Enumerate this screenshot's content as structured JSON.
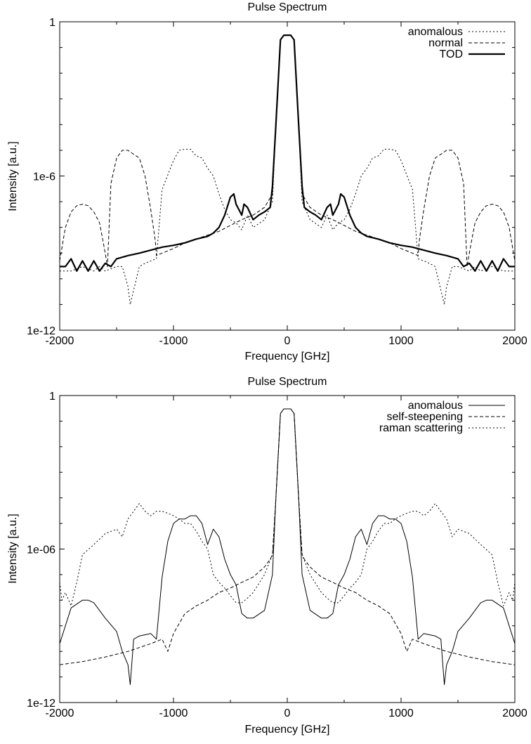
{
  "chart_data": [
    {
      "type": "line",
      "title": "Pulse Spectrum",
      "xlabel": "Frequency [GHz]",
      "ylabel": "Intensity [a.u.]",
      "xlim": [
        -2000,
        2000
      ],
      "ylim": [
        1e-12,
        1
      ],
      "yscale": "log",
      "xticks": [
        -2000,
        -1000,
        0,
        1000,
        2000
      ],
      "xtick_labels": [
        "-2000",
        "-1000",
        "0",
        "1000",
        "2000"
      ],
      "yticks": [
        1e-12,
        1e-06,
        1
      ],
      "ytick_labels": [
        "1e-12",
        "1e-6",
        "1"
      ],
      "grid": false,
      "legend_position": "top-right",
      "series": [
        {
          "name": "anomalous",
          "style": "dotted",
          "x": [
            -2000,
            -1900,
            -1800,
            -1700,
            -1650,
            -1600,
            -1500,
            -1450,
            -1400,
            -1380,
            -1300,
            -1250,
            -1200,
            -1150,
            -1100,
            -1000,
            -950,
            -900,
            -850,
            -800,
            -750,
            -700,
            -650,
            -600,
            -550,
            -500,
            -450,
            -400,
            -350,
            -300,
            -200,
            -130,
            -100,
            -60,
            -30,
            0,
            30,
            60,
            100,
            130,
            200,
            300,
            350,
            400,
            450,
            500,
            550,
            600,
            650,
            700,
            750,
            800,
            850,
            900,
            950,
            1000,
            1100,
            1150,
            1200,
            1250,
            1300,
            1380,
            1400,
            1450,
            1500,
            1600,
            1650,
            1700,
            1800,
            1900,
            2000
          ],
          "y": [
            2e-10,
            2e-10,
            3e-10,
            2e-10,
            3e-10,
            2e-10,
            3e-10,
            3e-10,
            5e-11,
            1e-11,
            3e-10,
            4e-10,
            5e-10,
            6e-10,
            3e-07,
            4e-06,
            1e-05,
            1.1e-05,
            1.1e-05,
            6e-06,
            5e-06,
            2e-06,
            1e-06,
            2e-07,
            5e-08,
            2e-08,
            1.5e-08,
            8e-09,
            3e-08,
            1e-08,
            2e-08,
            1e-07,
            0.0001,
            0.2,
            0.3,
            0.3,
            0.3,
            0.2,
            0.0001,
            1e-07,
            2e-08,
            1e-08,
            3e-08,
            8e-09,
            1.5e-08,
            2e-08,
            5e-08,
            2e-07,
            1e-06,
            2e-06,
            5e-06,
            6e-06,
            1.1e-05,
            1.1e-05,
            1e-05,
            4e-06,
            3e-07,
            6e-10,
            5e-10,
            4e-10,
            3e-10,
            1e-11,
            5e-11,
            3e-10,
            3e-10,
            2e-10,
            3e-10,
            2e-10,
            3e-10,
            2e-10,
            2e-10
          ]
        },
        {
          "name": "normal",
          "style": "dashed",
          "x": [
            -2000,
            -1950,
            -1900,
            -1850,
            -1800,
            -1750,
            -1700,
            -1650,
            -1620,
            -1600,
            -1580,
            -1550,
            -1500,
            -1450,
            -1400,
            -1350,
            -1300,
            -1250,
            -1200,
            -1160,
            -1150,
            -1100,
            -1000,
            -900,
            -800,
            -700,
            -600,
            -500,
            -400,
            -300,
            -200,
            -130,
            -100,
            -60,
            -30,
            0,
            30,
            60,
            100,
            130,
            200,
            300,
            400,
            500,
            600,
            700,
            800,
            900,
            1000,
            1100,
            1150,
            1160,
            1200,
            1250,
            1300,
            1350,
            1400,
            1450,
            1500,
            1550,
            1580,
            1600,
            1620,
            1650,
            1700,
            1750,
            1800,
            1850,
            1900,
            1950,
            2000
          ],
          "y": [
            5e-10,
            1e-08,
            4e-08,
            7e-08,
            8e-08,
            7e-08,
            4e-08,
            1.5e-08,
            3e-09,
            1e-09,
            3e-10,
            5e-07,
            5e-06,
            1e-05,
            1e-05,
            7e-06,
            5e-06,
            1e-06,
            5e-08,
            3e-09,
            8e-10,
            1e-09,
            1.5e-09,
            2.5e-09,
            3.5e-09,
            5e-09,
            7e-09,
            1.2e-08,
            2e-08,
            3e-08,
            6e-08,
            2e-07,
            0.0001,
            0.2,
            0.3,
            0.3,
            0.3,
            0.2,
            0.0001,
            2e-07,
            6e-08,
            3e-08,
            2e-08,
            1.2e-08,
            7e-09,
            5e-09,
            3.5e-09,
            2.5e-09,
            1.5e-09,
            1e-09,
            8e-10,
            3e-09,
            5e-08,
            1e-06,
            5e-06,
            7e-06,
            1e-05,
            1e-05,
            5e-06,
            5e-07,
            3e-10,
            1e-09,
            3e-09,
            1.5e-08,
            4e-08,
            7e-08,
            8e-08,
            7e-08,
            4e-08,
            1e-08,
            5e-10
          ]
        },
        {
          "name": "TOD",
          "style": "solid-thick",
          "x": [
            -2000,
            -1950,
            -1900,
            -1850,
            -1800,
            -1750,
            -1700,
            -1650,
            -1600,
            -1550,
            -1500,
            -1400,
            -1300,
            -1200,
            -1100,
            -1000,
            -900,
            -800,
            -700,
            -650,
            -600,
            -550,
            -500,
            -470,
            -450,
            -400,
            -380,
            -350,
            -300,
            -250,
            -200,
            -150,
            -130,
            -100,
            -60,
            -30,
            0,
            30,
            60,
            100,
            130,
            150,
            200,
            250,
            300,
            350,
            380,
            400,
            450,
            470,
            500,
            550,
            600,
            650,
            700,
            800,
            900,
            1000,
            1100,
            1200,
            1300,
            1400,
            1500,
            1550,
            1600,
            1650,
            1700,
            1750,
            1800,
            1850,
            1900,
            1950,
            2000
          ],
          "y": [
            3e-10,
            3e-10,
            6e-10,
            2e-10,
            5e-10,
            2e-10,
            5e-10,
            2e-10,
            4e-10,
            3e-10,
            6e-10,
            8e-10,
            1e-09,
            1.3e-09,
            1.7e-09,
            2e-09,
            2.5e-09,
            3.5e-09,
            4.5e-09,
            6e-09,
            1e-08,
            3e-08,
            1.5e-07,
            2e-07,
            8e-08,
            3e-08,
            8e-08,
            6e-08,
            2e-08,
            3e-08,
            4e-08,
            6e-08,
            4e-07,
            0.0001,
            0.2,
            0.3,
            0.3,
            0.3,
            0.2,
            0.0001,
            4e-07,
            6e-08,
            4e-08,
            3e-08,
            2e-08,
            6e-08,
            8e-08,
            3e-08,
            8e-08,
            2e-07,
            1.5e-07,
            3e-08,
            1e-08,
            6e-09,
            4.5e-09,
            3.5e-09,
            2.5e-09,
            2e-09,
            1.7e-09,
            1.3e-09,
            1e-09,
            8e-10,
            6e-10,
            3e-10,
            4e-10,
            2e-10,
            5e-10,
            2e-10,
            5e-10,
            2e-10,
            6e-10,
            3e-10,
            3e-10
          ]
        }
      ]
    },
    {
      "type": "line",
      "title": "Pulse Spectrum",
      "xlabel": "Frequency [GHz]",
      "ylabel": "Intensity [a.u.]",
      "xlim": [
        -2000,
        2000
      ],
      "ylim": [
        1e-12,
        1
      ],
      "yscale": "log",
      "xticks": [
        -2000,
        -1000,
        0,
        1000,
        2000
      ],
      "xtick_labels": [
        "-2000",
        "-1000",
        "0",
        "1000",
        "2000"
      ],
      "yticks": [
        1e-12,
        1e-06,
        1
      ],
      "ytick_labels": [
        "1e-12",
        "1e-06",
        "1"
      ],
      "grid": false,
      "legend_position": "top-right",
      "series": [
        {
          "name": "anomalous",
          "style": "solid",
          "x": [
            -2000,
            -1900,
            -1800,
            -1750,
            -1700,
            -1600,
            -1500,
            -1450,
            -1400,
            -1380,
            -1350,
            -1300,
            -1200,
            -1150,
            -1100,
            -1050,
            -1000,
            -950,
            -900,
            -850,
            -800,
            -750,
            -700,
            -650,
            -600,
            -550,
            -500,
            -450,
            -400,
            -350,
            -300,
            -200,
            -130,
            -100,
            -60,
            -30,
            0,
            30,
            60,
            100,
            130,
            200,
            300,
            350,
            400,
            450,
            500,
            550,
            600,
            650,
            700,
            750,
            800,
            850,
            900,
            950,
            1000,
            1050,
            1100,
            1150,
            1200,
            1300,
            1350,
            1380,
            1400,
            1450,
            1500,
            1600,
            1700,
            1750,
            1800,
            1900,
            2000
          ],
          "y": [
            2e-10,
            5e-09,
            1e-08,
            1e-08,
            8e-09,
            2e-09,
            6e-10,
            1e-10,
            3e-11,
            5e-12,
            3e-10,
            4e-10,
            5e-10,
            3e-10,
            8e-08,
            2e-06,
            1e-05,
            1.5e-05,
            1.5e-05,
            2e-05,
            2e-05,
            1e-05,
            1.5e-06,
            6e-06,
            3e-06,
            4e-07,
            1e-07,
            4e-08,
            3e-09,
            2e-09,
            2e-09,
            4e-09,
            1e-07,
            0.0001,
            0.2,
            0.3,
            0.3,
            0.3,
            0.2,
            0.0001,
            1e-07,
            4e-09,
            2e-09,
            2e-09,
            3e-09,
            4e-08,
            1e-07,
            4e-07,
            3e-06,
            6e-06,
            1.5e-06,
            1e-05,
            2e-05,
            2e-05,
            1.5e-05,
            1.5e-05,
            1e-05,
            2e-06,
            8e-08,
            3e-10,
            5e-10,
            4e-10,
            3e-10,
            5e-12,
            3e-11,
            1e-10,
            6e-10,
            2e-09,
            8e-09,
            1e-08,
            1e-08,
            5e-09,
            2e-10
          ]
        },
        {
          "name": "self-steepening",
          "style": "dashed",
          "x": [
            -2000,
            -1800,
            -1600,
            -1400,
            -1200,
            -1100,
            -1050,
            -1000,
            -900,
            -800,
            -700,
            -600,
            -500,
            -400,
            -300,
            -200,
            -150,
            -130,
            -100,
            -60,
            -30,
            0,
            30,
            60,
            100,
            130,
            150,
            200,
            300,
            400,
            500,
            600,
            700,
            800,
            900,
            1000,
            1050,
            1100,
            1200,
            1400,
            1600,
            1800,
            2000
          ],
          "y": [
            3e-11,
            4e-11,
            6e-11,
            1e-10,
            2e-10,
            3e-10,
            1e-10,
            5e-10,
            3e-09,
            6e-09,
            1e-08,
            2e-08,
            3e-08,
            5e-08,
            8e-08,
            2e-07,
            4e-07,
            6e-07,
            0.0001,
            0.2,
            0.3,
            0.3,
            0.3,
            0.2,
            0.0001,
            6e-07,
            4e-07,
            2e-07,
            8e-08,
            5e-08,
            3e-08,
            2e-08,
            1e-08,
            6e-09,
            3e-09,
            5e-10,
            1e-10,
            3e-10,
            2e-10,
            1e-10,
            6e-11,
            4e-11,
            3e-11
          ]
        },
        {
          "name": "raman scattering",
          "style": "dotted",
          "x": [
            -2000,
            -1980,
            -1950,
            -1900,
            -1850,
            -1800,
            -1700,
            -1600,
            -1500,
            -1450,
            -1400,
            -1350,
            -1300,
            -1250,
            -1200,
            -1150,
            -1100,
            -1050,
            -1000,
            -950,
            -900,
            -850,
            -800,
            -750,
            -700,
            -650,
            -600,
            -550,
            -500,
            -450,
            -400,
            -350,
            -300,
            -200,
            -130,
            -100,
            -60,
            -30,
            0,
            30,
            60,
            100,
            130,
            200,
            300,
            350,
            400,
            450,
            500,
            550,
            600,
            650,
            700,
            750,
            800,
            850,
            900,
            950,
            1000,
            1050,
            1100,
            1150,
            1200,
            1250,
            1300,
            1350,
            1400,
            1450,
            1500,
            1600,
            1700,
            1800,
            1850,
            1900,
            1950,
            1980,
            2000
          ],
          "y": [
            5e-08,
            1e-08,
            2e-08,
            6e-09,
            5e-08,
            6e-07,
            1.5e-06,
            4e-06,
            6e-06,
            3e-06,
            1.5e-05,
            3e-05,
            6e-05,
            3e-05,
            2e-05,
            3e-05,
            3e-05,
            2.5e-05,
            2e-05,
            1.5e-05,
            1e-05,
            1e-05,
            5e-06,
            2e-06,
            1e-06,
            1e-07,
            5e-08,
            3e-08,
            1.5e-08,
            8e-09,
            8e-09,
            1.2e-08,
            2e-08,
            1e-07,
            6e-07,
            0.0001,
            0.2,
            0.3,
            0.3,
            0.3,
            0.2,
            0.0001,
            6e-07,
            1e-07,
            2e-08,
            1.2e-08,
            8e-09,
            8e-09,
            1.5e-08,
            3e-08,
            5e-08,
            1e-07,
            1e-06,
            2e-06,
            5e-06,
            1e-05,
            1e-05,
            1.5e-05,
            2e-05,
            2.5e-05,
            3e-05,
            3e-05,
            2e-05,
            3e-05,
            6e-05,
            3e-05,
            1.5e-05,
            3e-06,
            6e-06,
            4e-06,
            1.5e-06,
            6e-07,
            5e-08,
            6e-09,
            2e-08,
            1e-08,
            5e-08
          ]
        }
      ]
    }
  ]
}
